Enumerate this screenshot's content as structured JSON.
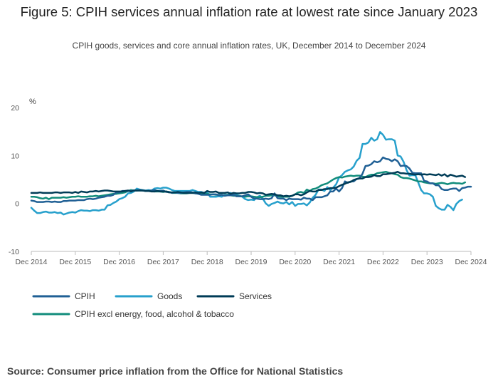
{
  "title": "Figure 5: CPIH services annual inflation rate at lowest rate since January 2023",
  "subtitle": "CPIH goods, services and core annual inflation rates, UK, December 2014 to December 2024",
  "source": "Source: Consumer price inflation from the Office for National Statistics",
  "chart_data": {
    "type": "line",
    "ylabel": "%",
    "ylim": [
      -10,
      20
    ],
    "yticks": [
      -10,
      0,
      10,
      20
    ],
    "grid": false,
    "legend_placement": "bottom-left",
    "x_tick_labels": [
      "Dec 2014",
      "Dec 2015",
      "Dec 2016",
      "Dec 2017",
      "Dec 2018",
      "Dec 2019",
      "Dec 2020",
      "Dec 2021",
      "Dec 2022",
      "Dec 2023",
      "Dec 2024"
    ],
    "x_start": "Dec 2014",
    "x_end": "Dec 2024",
    "frequency": "monthly",
    "series": [
      {
        "name": "CPIH",
        "color": "#206095",
        "values": [
          0.6,
          0.5,
          0.3,
          0.3,
          0.3,
          0.4,
          0.4,
          0.3,
          0.4,
          0.3,
          0.3,
          0.5,
          0.5,
          0.6,
          0.6,
          0.6,
          0.7,
          0.7,
          0.7,
          0.9,
          1.0,
          0.9,
          1.0,
          1.2,
          1.3,
          1.4,
          1.6,
          1.6,
          1.8,
          2.3,
          2.3,
          2.6,
          2.6,
          2.6,
          2.6,
          2.7,
          2.7,
          2.8,
          2.7,
          2.6,
          2.6,
          2.7,
          2.8,
          2.6,
          2.6,
          2.7,
          2.4,
          2.4,
          2.2,
          2.3,
          2.2,
          2.2,
          2.3,
          2.4,
          2.4,
          2.3,
          2.1,
          2.0,
          1.8,
          1.8,
          1.8,
          1.8,
          1.9,
          1.9,
          1.7,
          1.8,
          1.6,
          1.7,
          1.7,
          1.8,
          1.5,
          1.5,
          1.5,
          1.7,
          1.9,
          1.4,
          1.0,
          1.0,
          0.9,
          0.9,
          1.0,
          0.9,
          1.1,
          2.1,
          1.1,
          1.0,
          1.0,
          0.7,
          1.0,
          0.9,
          0.9,
          0.9,
          0.8,
          1.2,
          1.0,
          1.0,
          0.7,
          1.3,
          1.3,
          1.3,
          1.5,
          1.7,
          2.5,
          2.5,
          3.1,
          2.5,
          3.2,
          4.6,
          4.3,
          4.6,
          4.6,
          5.1,
          5.3,
          6.2,
          7.8,
          7.9,
          8.2,
          8.8,
          8.6,
          8.8,
          9.6,
          9.3,
          9.2,
          8.8,
          9.2,
          8.8,
          7.8,
          7.9,
          7.8,
          7.3,
          6.4,
          6.3,
          6.3,
          6.3,
          4.7,
          4.6,
          4.2,
          4.2,
          3.8,
          3.8,
          3.0,
          2.8,
          2.8,
          3.0,
          3.1,
          3.1,
          2.6,
          3.2,
          3.3,
          3.5,
          3.5
        ]
      },
      {
        "name": "Goods",
        "color": "#27a0cc",
        "values": [
          -0.9,
          -1.5,
          -2.0,
          -2.0,
          -1.8,
          -1.7,
          -1.9,
          -1.9,
          -1.8,
          -2.0,
          -1.9,
          -2.3,
          -2.1,
          -1.9,
          -1.8,
          -1.9,
          -1.6,
          -1.4,
          -1.5,
          -1.5,
          -1.6,
          -1.4,
          -1.4,
          -1.5,
          -1.3,
          -1.3,
          -0.4,
          -0.3,
          0.1,
          0.4,
          0.9,
          1.1,
          1.4,
          2.1,
          2.2,
          2.5,
          3.1,
          2.9,
          2.8,
          2.7,
          2.8,
          2.7,
          3.1,
          3.2,
          3.1,
          3.3,
          3.3,
          3.1,
          2.8,
          2.6,
          2.6,
          2.6,
          2.6,
          2.6,
          2.6,
          2.8,
          2.6,
          2.4,
          2.4,
          2.2,
          2.4,
          1.4,
          1.4,
          1.4,
          1.5,
          1.4,
          1.8,
          1.8,
          2.2,
          1.8,
          1.8,
          1.6,
          1.4,
          0.9,
          0.7,
          0.8,
          0.7,
          1.3,
          1.6,
          1.0,
          0.0,
          -0.5,
          -0.1,
          0.1,
          0.4,
          0.1,
          0.0,
          0.3,
          -0.2,
          0.3,
          -0.5,
          -0.1,
          -0.1,
          0.0,
          -0.4,
          0.2,
          1.2,
          1.8,
          2.9,
          2.9,
          2.6,
          3.4,
          2.8,
          3.3,
          4.0,
          5.4,
          5.9,
          6.6,
          6.9,
          7.1,
          7.7,
          8.9,
          9.5,
          12.4,
          12.4,
          12.7,
          13.7,
          13.1,
          13.4,
          14.9,
          14.3,
          13.3,
          13.4,
          13.4,
          13.1,
          10.0,
          9.8,
          8.7,
          7.0,
          5.8,
          5.9,
          5.9,
          4.4,
          2.8,
          2.1,
          2.1,
          1.9,
          1.4,
          -0.5,
          -1.0,
          -1.3,
          -1.3,
          -0.3,
          -0.7,
          -1.4,
          -0.1,
          0.5,
          0.8
        ]
      },
      {
        "name": "Services",
        "color": "#003c57",
        "values": [
          2.2,
          2.2,
          2.2,
          2.3,
          2.2,
          2.2,
          2.2,
          2.2,
          2.3,
          2.3,
          2.2,
          2.3,
          2.3,
          2.3,
          2.2,
          2.4,
          2.2,
          2.5,
          2.4,
          2.3,
          2.5,
          2.5,
          2.6,
          2.5,
          2.6,
          2.7,
          2.7,
          2.6,
          2.5,
          2.5,
          2.5,
          2.5,
          2.6,
          2.7,
          2.5,
          2.7,
          2.7,
          2.7,
          2.7,
          2.6,
          2.6,
          2.5,
          2.5,
          2.6,
          2.5,
          2.5,
          2.5,
          2.3,
          2.3,
          2.3,
          2.4,
          2.3,
          2.2,
          2.2,
          2.2,
          2.2,
          2.3,
          2.2,
          2.3,
          2.2,
          2.6,
          2.4,
          2.4,
          2.5,
          2.2,
          2.2,
          2.2,
          2.3,
          2.0,
          2.2,
          2.1,
          2.1,
          2.2,
          2.2,
          2.4,
          2.4,
          2.3,
          2.1,
          2.2,
          2.1,
          1.8,
          1.9,
          2.0,
          1.9,
          1.7,
          1.7,
          1.5,
          1.6,
          1.5,
          1.6,
          1.9,
          1.9,
          1.7,
          1.9,
          2.3,
          2.6,
          2.5,
          2.5,
          2.8,
          2.8,
          3.0,
          3.0,
          3.2,
          3.2,
          3.3,
          3.6,
          3.9,
          4.1,
          4.4,
          4.5,
          4.9,
          5.1,
          5.2,
          5.2,
          5.5,
          5.5,
          5.6,
          5.9,
          5.7,
          5.7,
          6.1,
          6.1,
          6.2,
          6.3,
          6.4,
          6.6,
          6.3,
          6.3,
          6.2,
          6.2,
          6.1,
          6.0,
          6.1,
          6.0,
          6.1,
          6.0,
          6.1,
          6.0,
          5.9,
          6.1,
          5.8,
          6.1,
          5.6,
          6.0,
          5.8,
          5.6,
          5.7,
          5.8,
          5.5
        ]
      },
      {
        "name": "CPIH excl energy, food, alcohol & tobacco",
        "color": "#118c7b",
        "values": [
          1.4,
          1.4,
          1.3,
          1.1,
          1.0,
          1.2,
          0.9,
          1.2,
          1.2,
          1.2,
          1.2,
          1.3,
          1.2,
          1.3,
          1.4,
          1.4,
          1.5,
          1.4,
          1.4,
          1.4,
          1.5,
          1.5,
          1.6,
          1.5,
          1.6,
          1.7,
          1.8,
          1.9,
          2.0,
          2.0,
          2.1,
          2.2,
          2.3,
          2.6,
          2.8,
          2.7,
          2.7,
          2.7,
          2.7,
          2.6,
          2.6,
          2.6,
          2.5,
          2.5,
          2.5,
          2.4,
          2.5,
          2.4,
          2.2,
          2.2,
          2.2,
          2.1,
          2.1,
          2.1,
          2.2,
          2.2,
          2.1,
          2.1,
          2.1,
          2.0,
          2.0,
          1.9,
          1.9,
          1.8,
          1.8,
          1.8,
          1.7,
          1.8,
          1.7,
          1.6,
          1.6,
          1.5,
          1.5,
          1.4,
          1.5,
          1.5,
          1.4,
          1.3,
          1.3,
          1.4,
          1.6,
          1.6,
          1.7,
          1.7,
          1.5,
          1.4,
          1.4,
          1.4,
          1.4,
          1.6,
          1.9,
          2.3,
          2.4,
          2.2,
          2.9,
          2.6,
          3.0,
          3.1,
          3.4,
          3.8,
          4.0,
          4.2,
          4.6,
          5.0,
          5.3,
          5.5,
          5.4,
          5.6,
          5.7,
          5.8,
          5.7,
          5.8,
          5.8,
          5.6,
          5.5,
          5.8,
          6.0,
          6.0,
          6.3,
          6.4,
          6.5,
          6.6,
          6.4,
          6.3,
          6.1,
          6.0,
          5.5,
          5.3,
          5.3,
          5.2,
          5.0,
          4.8,
          4.6,
          4.6,
          4.4,
          4.3,
          4.2,
          4.2,
          4.1,
          4.2,
          4.3,
          4.2,
          4.0,
          4.2,
          4.3,
          4.2,
          4.2,
          4.1,
          4.4
        ]
      }
    ]
  }
}
